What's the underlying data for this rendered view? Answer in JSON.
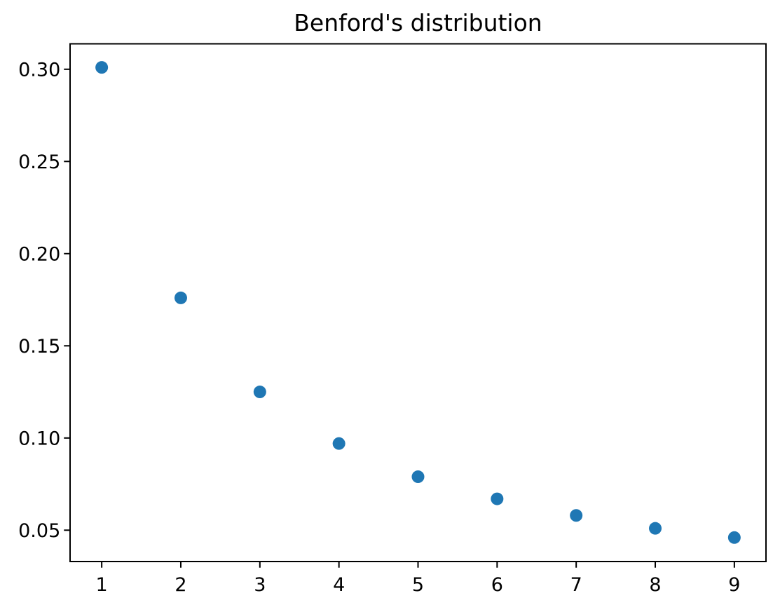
{
  "chart_data": {
    "type": "scatter",
    "title": "Benford's distribution",
    "xlabel": "",
    "ylabel": "",
    "x": [
      1,
      2,
      3,
      4,
      5,
      6,
      7,
      8,
      9
    ],
    "y": [
      0.301,
      0.176,
      0.125,
      0.097,
      0.079,
      0.067,
      0.058,
      0.051,
      0.046
    ],
    "xlim": [
      0.6,
      9.4
    ],
    "ylim": [
      0.033,
      0.3138
    ],
    "x_ticks": [
      1,
      2,
      3,
      4,
      5,
      6,
      7,
      8,
      9
    ],
    "x_tick_labels": [
      "1",
      "2",
      "3",
      "4",
      "5",
      "6",
      "7",
      "8",
      "9"
    ],
    "y_ticks": [
      0.05,
      0.1,
      0.15,
      0.2,
      0.25,
      0.3
    ],
    "y_tick_labels": [
      "0.05",
      "0.10",
      "0.15",
      "0.20",
      "0.25",
      "0.30"
    ],
    "marker_color": "#1f77b4",
    "marker_radius_px": 9,
    "axis_color": "#000000",
    "background_color": "#ffffff",
    "grid": false,
    "legend": null
  }
}
